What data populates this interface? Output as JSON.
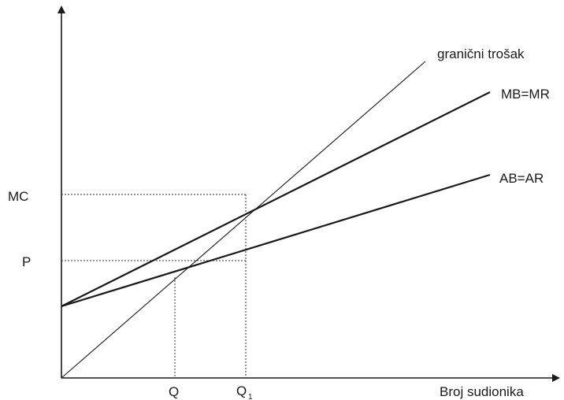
{
  "diagram": {
    "axes": {
      "x_label": "Broj sudionika"
    },
    "y_labels": {
      "mc": "MC",
      "p": "P"
    },
    "x_labels": {
      "q": "Q",
      "q1": "Q",
      "q1_subscript": "1"
    },
    "curves": {
      "marginal_cost": {
        "label": "granični trošak"
      },
      "mb_mr": {
        "label": "MB=MR"
      },
      "ab_ar": {
        "label": "AB=AR"
      }
    },
    "colors": {
      "ink": "#1a1a1a"
    }
  }
}
